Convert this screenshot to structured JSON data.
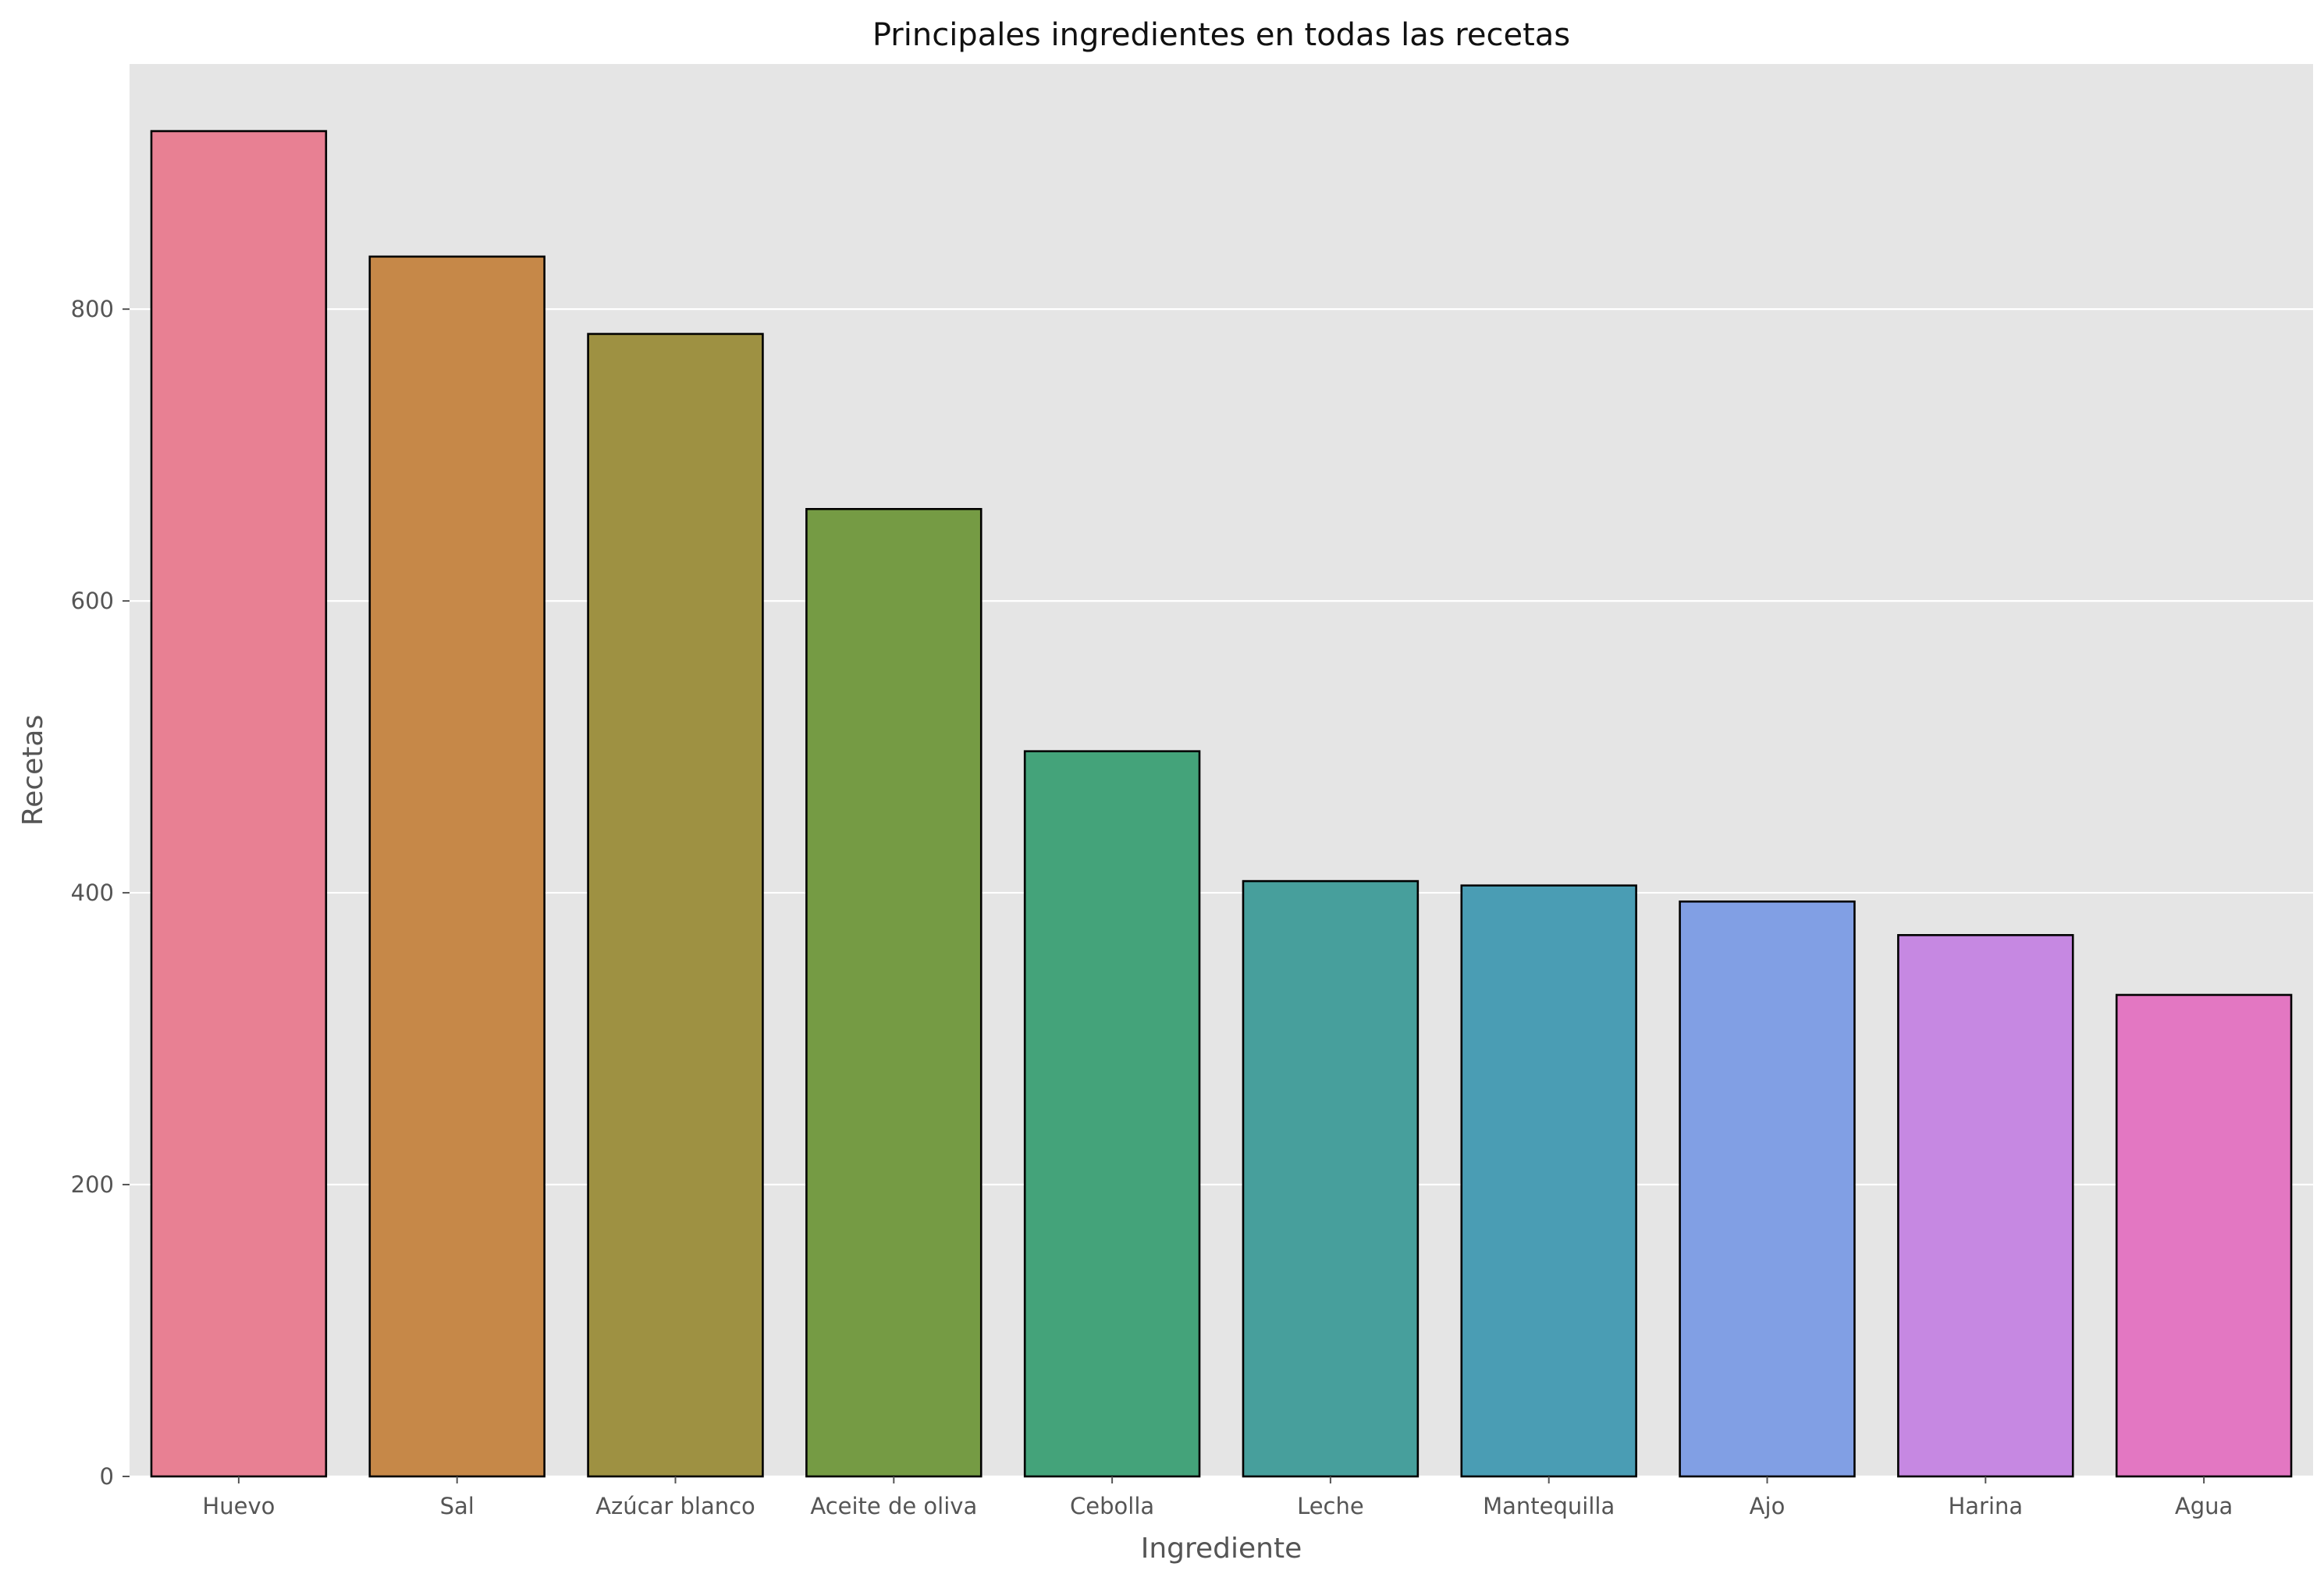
{
  "chart_data": {
    "type": "bar",
    "title": "Principales ingredientes en todas las recetas",
    "xlabel": "Ingrediente",
    "ylabel": "Recetas",
    "categories": [
      "Huevo",
      "Sal",
      "Azúcar blanco",
      "Aceite de oliva",
      "Cebolla",
      "Leche",
      "Mantequilla",
      "Ajo",
      "Harina",
      "Agua"
    ],
    "values": [
      922,
      836,
      783,
      663,
      497,
      408,
      405,
      394,
      371,
      330
    ],
    "colors": [
      "#e88093",
      "#c68848",
      "#9e9142",
      "#759b44",
      "#44a37a",
      "#479f9c",
      "#4a9db4",
      "#819fe4",
      "#c688e2",
      "#e377c2"
    ],
    "yticks": [
      0,
      200,
      400,
      600,
      800
    ],
    "ylim": [
      0,
      968
    ],
    "grid": true,
    "background": "#e5e5e5",
    "legend": "none"
  }
}
